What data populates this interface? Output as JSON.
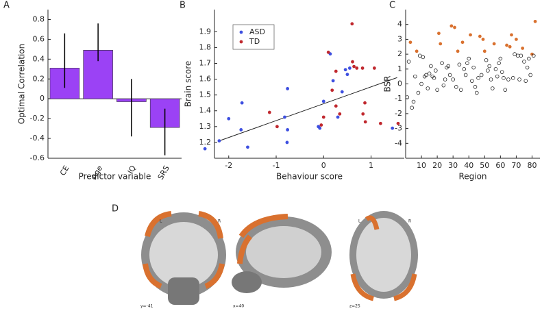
{
  "chart_data": [
    {
      "type": "bar",
      "panel": "A",
      "ylabel": "Optimal Correlation",
      "xlabel": "Predictor variable",
      "categories": [
        "CE",
        "Age",
        "IQ",
        "SRS"
      ],
      "values": [
        0.31,
        0.49,
        -0.03,
        -0.29
      ],
      "lower": [
        0.11,
        0.38,
        -0.38,
        -0.57
      ],
      "upper": [
        0.66,
        0.76,
        0.2,
        -0.1
      ],
      "color": "#9b42f5",
      "ylim": [
        -0.6,
        0.9
      ],
      "yticks": [
        -0.6,
        -0.4,
        -0.2,
        0,
        0.2,
        0.4,
        0.6,
        0.8
      ]
    },
    {
      "type": "scatter",
      "panel": "B",
      "xlabel": "Behaviour score",
      "ylabel": "Brain score",
      "xlim": [
        -2.3,
        1.7
      ],
      "ylim": [
        1.1,
        2.04
      ],
      "xticks": [
        -2,
        -1,
        0,
        1
      ],
      "yticks": [
        1.2,
        1.3,
        1.4,
        1.5,
        1.6,
        1.7,
        1.8,
        1.9
      ],
      "legend": "upper-left",
      "series": [
        {
          "name": "ASD",
          "color": "#3d4fe0",
          "x": [
            -2.5,
            -2.2,
            -2.0,
            -1.72,
            -1.74,
            -1.6,
            -0.76,
            -0.82,
            -0.76,
            -0.77,
            -0.11,
            -0.08,
            0.0,
            0.14,
            0.2,
            0.3,
            0.39,
            0.5,
            0.46,
            0.55,
            1.45
          ],
          "values": [
            1.16,
            1.21,
            1.35,
            1.45,
            1.28,
            1.17,
            1.54,
            1.36,
            1.28,
            1.2,
            1.3,
            1.29,
            1.46,
            1.76,
            1.59,
            1.36,
            1.52,
            1.63,
            1.66,
            1.67,
            1.29
          ]
        },
        {
          "name": "TD",
          "color": "#c0282e",
          "x": [
            -1.14,
            -0.98,
            -0.05,
            0.0,
            0.1,
            0.18,
            0.26,
            0.26,
            0.34,
            0.6,
            0.61,
            0.64,
            0.7,
            0.82,
            0.83,
            0.87,
            0.88,
            1.07,
            1.2,
            1.57
          ],
          "values": [
            1.39,
            1.3,
            1.31,
            1.36,
            1.77,
            1.53,
            1.65,
            1.43,
            1.38,
            1.95,
            1.71,
            1.68,
            1.67,
            1.67,
            1.38,
            1.45,
            1.33,
            1.67,
            1.32,
            1.32
          ]
        }
      ],
      "fit": {
        "x": [
          -2.2,
          1.55
        ],
        "y": [
          1.21,
          1.61
        ]
      }
    },
    {
      "type": "scatter",
      "panel": "C",
      "xlabel": "Region",
      "ylabel": "BSR",
      "xlim": [
        0,
        85
      ],
      "ylim": [
        -5,
        5
      ],
      "xticks": [
        10,
        20,
        30,
        40,
        50,
        60,
        70,
        80
      ],
      "yticks": [
        -4,
        -3,
        -2,
        -1,
        0,
        1,
        2,
        3,
        4
      ],
      "series": [
        {
          "color": "#d9712f",
          "filled": true,
          "x": [
            3,
            7,
            21,
            22,
            29,
            31,
            33,
            36,
            41,
            47,
            49,
            50,
            56,
            64,
            66,
            67,
            70,
            74,
            80,
            82
          ],
          "values": [
            2.8,
            2.2,
            3.4,
            2.7,
            3.9,
            3.8,
            2.2,
            2.8,
            3.3,
            3.2,
            3.0,
            2.2,
            2.7,
            2.6,
            2.5,
            3.3,
            3.0,
            2.4,
            2.0,
            4.2
          ]
        },
        {
          "color": "#222222",
          "filled": false,
          "x": [
            1,
            2,
            4,
            5,
            6,
            8,
            9,
            10,
            11,
            12,
            13,
            14,
            15,
            16,
            17,
            18,
            19,
            20,
            23,
            24,
            25,
            26,
            27,
            28,
            30,
            32,
            34,
            35,
            37,
            38,
            39,
            40,
            42,
            43,
            44,
            45,
            46,
            48,
            51,
            52,
            53,
            54,
            55,
            57,
            58,
            59,
            60,
            61,
            62,
            63,
            65,
            68,
            69,
            71,
            72,
            73,
            75,
            76,
            77,
            78,
            79,
            81
          ],
          "values": [
            -0.9,
            1.5,
            -1.6,
            -1.2,
            0.5,
            -0.6,
            1.9,
            0.0,
            1.8,
            0.5,
            0.6,
            -0.3,
            0.7,
            1.2,
            0.5,
            0.4,
            0.9,
            -0.4,
            1.4,
            -0.1,
            0.3,
            1.1,
            1.2,
            0.6,
            0.3,
            -0.2,
            1.3,
            -0.4,
            1.0,
            0.6,
            1.4,
            1.7,
            0.2,
            1.1,
            -0.2,
            -0.6,
            0.4,
            0.6,
            1.6,
            0.9,
            1.2,
            0.3,
            -0.3,
            1.0,
            0.5,
            1.4,
            1.7,
            0.8,
            0.4,
            -0.4,
            0.3,
            0.4,
            2.0,
            1.9,
            0.3,
            1.9,
            1.5,
            0.2,
            1.1,
            1.7,
            0.6,
            1.9
          ]
        }
      ]
    }
  ],
  "brain": {
    "panel": "D",
    "views": [
      {
        "label": "y=-41",
        "left": "L",
        "right": "R"
      },
      {
        "label": "x=40"
      },
      {
        "label": "z=25",
        "left": "L",
        "right": "R"
      }
    ]
  }
}
